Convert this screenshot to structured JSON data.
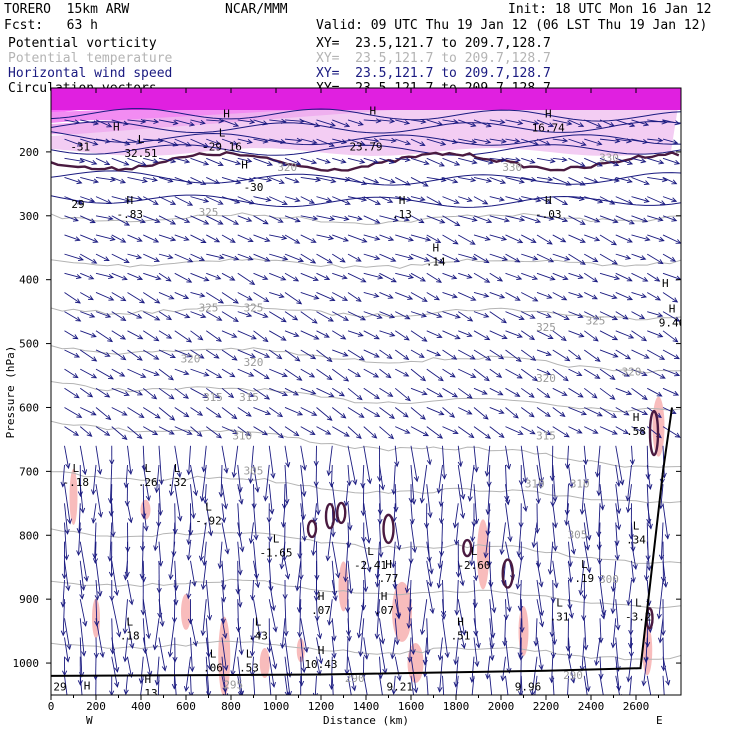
{
  "header": {
    "model": "TORERO  15km ARW",
    "center": "NCAR/MMM",
    "init": "Init: 18 UTC Mon 16 Jan 12",
    "fcst": "Fcst:   63 h",
    "valid": "Valid: 09 UTC Thu 19 Jan 12 (06 LST Thu 19 Jan 12)"
  },
  "fields": [
    {
      "name": "Potential vorticity",
      "xy": "XY=  23.5,121.7 to 209.7,128.7",
      "color": "#000000"
    },
    {
      "name": "Potential temperature",
      "xy": "XY=  23.5,121.7 to 209.7,128.7",
      "color": "#b4b4b4"
    },
    {
      "name": "Horizontal wind speed",
      "xy": "XY=  23.5,121.7 to 209.7,128.7",
      "color": "#1a1a80"
    },
    {
      "name": "Circulation vectors",
      "xy": "XY=  23.5,121.7 to 209.7,128.7",
      "color": "#000000"
    }
  ],
  "chart_data": {
    "type": "cross-section",
    "xlabel": "Distance (km)",
    "ylabel": "Pressure (hPa)",
    "xlim": [
      0,
      2800
    ],
    "ylim": [
      1050,
      100
    ],
    "x_ticks": [
      "0",
      "200",
      "400",
      "600",
      "800",
      "1000",
      "1200",
      "1400",
      "1600",
      "1800",
      "2000",
      "2200",
      "2400",
      "2600"
    ],
    "x_tick_values": [
      0,
      200,
      400,
      600,
      800,
      1000,
      1200,
      1400,
      1600,
      1800,
      2000,
      2200,
      2400,
      2600
    ],
    "y_ticks": [
      "200",
      "300",
      "400",
      "500",
      "600",
      "700",
      "800",
      "900",
      "1000"
    ],
    "y_tick_values": [
      200,
      300,
      400,
      500,
      600,
      700,
      800,
      900,
      1000
    ],
    "x_end_labels": {
      "left": "W",
      "right": "E"
    },
    "theta_labels": [
      {
        "text": "325",
        "x": 700,
        "p": 300
      },
      {
        "text": "320",
        "x": 1050,
        "p": 230
      },
      {
        "text": "330",
        "x": 2050,
        "p": 230
      },
      {
        "text": "330",
        "x": 2480,
        "p": 215
      },
      {
        "text": "325",
        "x": 700,
        "p": 450
      },
      {
        "text": "325",
        "x": 900,
        "p": 450
      },
      {
        "text": "325",
        "x": 2200,
        "p": 480
      },
      {
        "text": "325",
        "x": 2420,
        "p": 470
      },
      {
        "text": "320",
        "x": 620,
        "p": 530
      },
      {
        "text": "320",
        "x": 900,
        "p": 535
      },
      {
        "text": "320",
        "x": 2200,
        "p": 560
      },
      {
        "text": "320",
        "x": 2580,
        "p": 550
      },
      {
        "text": "315",
        "x": 720,
        "p": 590
      },
      {
        "text": "315",
        "x": 880,
        "p": 590
      },
      {
        "text": "315",
        "x": 2200,
        "p": 650
      },
      {
        "text": "310",
        "x": 850,
        "p": 650
      },
      {
        "text": "310",
        "x": 2150,
        "p": 725
      },
      {
        "text": "310",
        "x": 2350,
        "p": 725
      },
      {
        "text": "305",
        "x": 900,
        "p": 705
      },
      {
        "text": "305",
        "x": 2340,
        "p": 805
      },
      {
        "text": "300",
        "x": 2480,
        "p": 875
      },
      {
        "text": "295",
        "x": 810,
        "p": 1040
      },
      {
        "text": "290",
        "x": 1350,
        "p": 1030
      },
      {
        "text": "290",
        "x": 2320,
        "p": 1025
      }
    ],
    "extrema": [
      {
        "kind": "H",
        "value": "",
        "x": 780,
        "p": 165
      },
      {
        "kind": "H",
        "value": "16.74",
        "x": 2210,
        "p": 165
      },
      {
        "kind": "H",
        "value": "",
        "x": 1430,
        "p": 160
      },
      {
        "kind": "H",
        "value": "",
        "x": 290,
        "p": 185
      },
      {
        "kind": "L",
        "value": "32.51",
        "x": 400,
        "p": 205
      },
      {
        "kind": "L",
        "value": "-29.16",
        "x": 760,
        "p": 195
      },
      {
        "kind": "",
        "value": "-31",
        "x": 130,
        "p": 195
      },
      {
        "kind": "",
        "value": "23.79",
        "x": 1400,
        "p": 195
      },
      {
        "kind": "H",
        "value": "",
        "x": 860,
        "p": 245
      },
      {
        "kind": "",
        "value": "-30",
        "x": 900,
        "p": 258
      },
      {
        "kind": "",
        "value": "29",
        "x": 120,
        "p": 285
      },
      {
        "kind": "H",
        "value": "-.83",
        "x": 350,
        "p": 300
      },
      {
        "kind": "H",
        "value": ".13",
        "x": 1560,
        "p": 300
      },
      {
        "kind": "H",
        "value": "-.03",
        "x": 2210,
        "p": 300
      },
      {
        "kind": "H",
        "value": ".14",
        "x": 1710,
        "p": 375
      },
      {
        "kind": "H",
        "value": "",
        "x": 2730,
        "p": 430
      },
      {
        "kind": "H",
        "value": "9.46",
        "x": 2760,
        "p": 470
      },
      {
        "kind": "H",
        "value": ".58",
        "x": 2600,
        "p": 640
      },
      {
        "kind": "L",
        "value": "-.18",
        "x": 110,
        "p": 720
      },
      {
        "kind": "L",
        "value": ".26",
        "x": 430,
        "p": 720
      },
      {
        "kind": "L",
        "value": ".32",
        "x": 560,
        "p": 720
      },
      {
        "kind": "L",
        "value": "-.92",
        "x": 700,
        "p": 780
      },
      {
        "kind": "L",
        "value": "-1.65",
        "x": 1000,
        "p": 830
      },
      {
        "kind": "L",
        "value": "-2.41",
        "x": 1420,
        "p": 850
      },
      {
        "kind": "L",
        "value": "-2.60",
        "x": 1880,
        "p": 850
      },
      {
        "kind": "L",
        "value": ".34",
        "x": 2600,
        "p": 810
      },
      {
        "kind": "H",
        "value": ".77",
        "x": 1500,
        "p": 870
      },
      {
        "kind": "L",
        "value": ".19",
        "x": 2370,
        "p": 870
      },
      {
        "kind": "H",
        "value": ".07",
        "x": 1200,
        "p": 920
      },
      {
        "kind": "H",
        "value": ".07",
        "x": 1480,
        "p": 920
      },
      {
        "kind": "L",
        "value": ".31",
        "x": 2260,
        "p": 930
      },
      {
        "kind": "L",
        "value": "-3.2",
        "x": 2610,
        "p": 930
      },
      {
        "kind": "L",
        "value": ".18",
        "x": 350,
        "p": 960
      },
      {
        "kind": "L",
        "value": ".43",
        "x": 920,
        "p": 960
      },
      {
        "kind": "H",
        "value": ".51",
        "x": 1820,
        "p": 960
      },
      {
        "kind": "L",
        "value": ".06",
        "x": 720,
        "p": 1010
      },
      {
        "kind": "L",
        "value": ".53",
        "x": 880,
        "p": 1010
      },
      {
        "kind": "H",
        "value": "10.43",
        "x": 1200,
        "p": 1005
      },
      {
        "kind": "",
        "value": "9.21",
        "x": 1550,
        "p": 1040
      },
      {
        "kind": "H",
        "value": "-3.77",
        "x": 160,
        "p": 1060
      },
      {
        "kind": "H",
        "value": ".13",
        "x": 430,
        "p": 1050
      },
      {
        "kind": "",
        "value": "29",
        "x": 40,
        "p": 1040
      },
      {
        "kind": "",
        "value": "-2.40",
        "x": 1830,
        "p": 1060
      },
      {
        "kind": "",
        "value": "9.96",
        "x": 2120,
        "p": 1040
      }
    ]
  }
}
